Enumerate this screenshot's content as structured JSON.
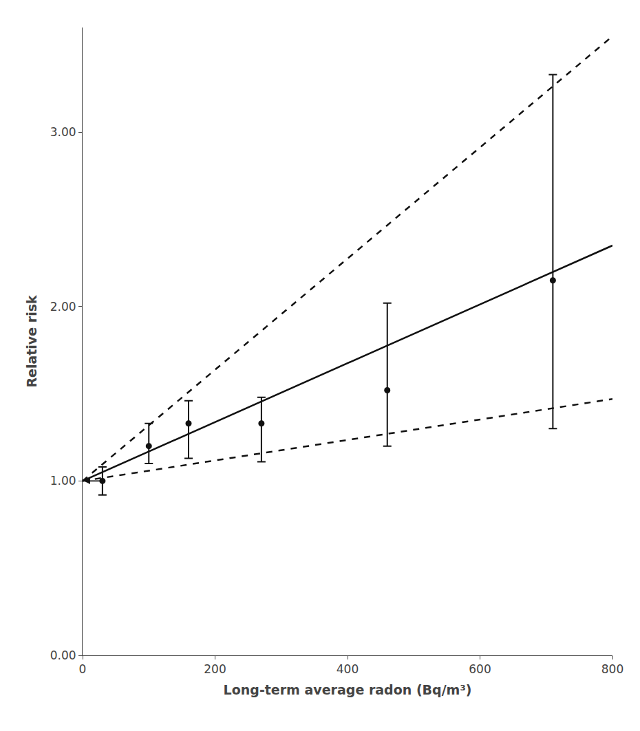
{
  "chart_data": {
    "type": "scatter",
    "xlabel": "Long-term average radon (Bq/m³)",
    "ylabel": "Relative risk",
    "xlim": [
      0,
      800
    ],
    "ylim": [
      0,
      3.6
    ],
    "xticks": [
      0,
      200,
      400,
      600,
      800
    ],
    "yticks": [
      {
        "value": 0,
        "label": "0.00"
      },
      {
        "value": 1,
        "label": "1.00"
      },
      {
        "value": 2,
        "label": "2.00"
      },
      {
        "value": 3,
        "label": "3.00"
      }
    ],
    "grid": false,
    "color": "#111111",
    "series": [
      {
        "type": "line",
        "line_style": "solid",
        "x": [
          0,
          800
        ],
        "values": [
          1.0,
          2.35
        ]
      },
      {
        "type": "line",
        "line_style": "dashed",
        "x": [
          0,
          800
        ],
        "values": [
          1.0,
          3.55
        ]
      },
      {
        "type": "line",
        "line_style": "dashed",
        "x": [
          0,
          800
        ],
        "values": [
          1.0,
          1.47
        ]
      },
      {
        "type": "scatter",
        "marker": "circle",
        "x": [
          30,
          100,
          160,
          270,
          460,
          710
        ],
        "values": [
          1.0,
          1.2,
          1.33,
          1.33,
          1.52,
          2.15
        ],
        "error_low": [
          0.08,
          0.1,
          0.2,
          0.22,
          0.32,
          0.85
        ],
        "error_high": [
          0.08,
          0.13,
          0.13,
          0.15,
          0.5,
          1.18
        ]
      }
    ],
    "arrow": {
      "x_start": 28,
      "x_end": 2,
      "y": 1.0
    }
  }
}
